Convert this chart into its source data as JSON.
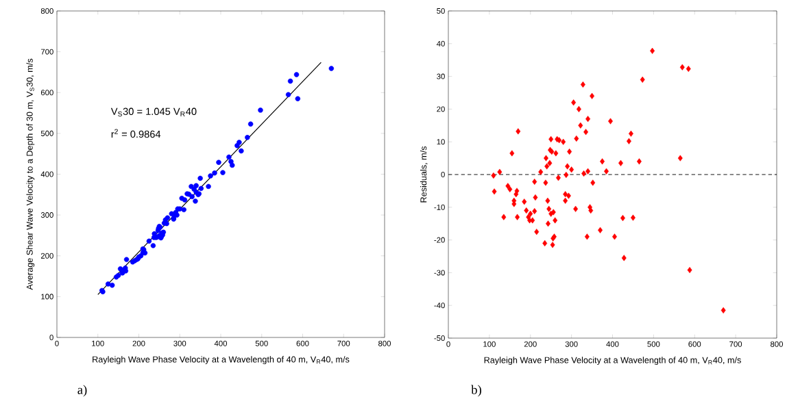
{
  "chart_data": [
    {
      "type": "scatter",
      "xlabel": "Rayleigh Wave Phase Velocity at a Wavelength of 40 m, V$_{R}$40, m/s",
      "ylabel": "Average Shear Wave Velocity to a Depth of 30 m, V$_{S}$30, m/s",
      "annotations": [
        "V$_{S}$30 = 1.045 V$_{R}$40",
        "r$^{2}$ = 0.9864",
        "a)"
      ],
      "xlim": [
        0,
        800
      ],
      "ylim": [
        0,
        800
      ],
      "xticks": [
        0,
        100,
        200,
        300,
        400,
        500,
        600,
        700,
        800
      ],
      "yticks": [
        0,
        100,
        200,
        300,
        400,
        500,
        600,
        700,
        800
      ],
      "series": [
        {
          "marker": "circle",
          "color": "#0000ff",
          "x": [
            110,
            112,
            125,
            135,
            145,
            150,
            155,
            160,
            160,
            165,
            167,
            170,
            168,
            185,
            190,
            195,
            198,
            200,
            205,
            210,
            210,
            212,
            215,
            225,
            235,
            237,
            238,
            242,
            245,
            247,
            248,
            250,
            250,
            252,
            254,
            255,
            256,
            258,
            260,
            262,
            265,
            268,
            270,
            280,
            285,
            285,
            287,
            290,
            293,
            295,
            300,
            305,
            310,
            312,
            318,
            322,
            328,
            330,
            335,
            338,
            340,
            340,
            345,
            347,
            350,
            352,
            370,
            375,
            385,
            395,
            405,
            420,
            425,
            428,
            440,
            445,
            450,
            465,
            473,
            497,
            565,
            570,
            585,
            588,
            670
          ],
          "values": [
            115,
            112,
            131,
            128,
            148,
            152,
            168,
            158,
            159,
            166,
            170,
            191,
            163,
            185,
            188,
            191,
            193,
            197,
            200,
            217,
            208,
            215,
            207,
            236,
            225,
            245,
            254,
            245,
            246,
            262,
            267,
            272,
            249,
            270,
            244,
            247,
            256,
            251,
            258,
            280,
            288,
            279,
            293,
            303,
            292,
            290,
            300,
            306,
            300,
            315,
            315,
            341,
            313,
            337,
            352,
            351,
            370,
            345,
            363,
            334,
            356,
            372,
            350,
            352,
            390,
            365,
            370,
            396,
            403,
            429,
            404,
            442,
            431,
            422,
            470,
            478,
            457,
            490,
            523,
            557,
            595,
            628,
            644,
            585,
            659
          ]
        },
        {
          "type": "line",
          "color": "#000000",
          "x": [
            100,
            645
          ],
          "values": [
            105,
            674
          ]
        }
      ]
    },
    {
      "type": "scatter",
      "xlabel": "Rayleigh Wave Phase Velocity at a Wavelength of 40 m, V$_{R}$40, m/s",
      "ylabel": "Residuals, m/s",
      "annotations": [
        "b)"
      ],
      "xlim": [
        0,
        800
      ],
      "ylim": [
        -50,
        50
      ],
      "xticks": [
        0,
        100,
        200,
        300,
        400,
        500,
        600,
        700,
        800
      ],
      "yticks": [
        -50,
        -40,
        -30,
        -20,
        -10,
        0,
        10,
        20,
        30,
        40,
        50
      ],
      "ref_lines": [
        {
          "axis": "y",
          "value": 0,
          "color": "#000000",
          "line_style": "dashed"
        }
      ],
      "series": [
        {
          "marker": "diamond",
          "color": "#ff0000",
          "x": [
            110,
            112,
            125,
            135,
            145,
            150,
            155,
            160,
            160,
            165,
            167,
            170,
            168,
            185,
            190,
            195,
            198,
            200,
            205,
            210,
            210,
            212,
            215,
            225,
            235,
            237,
            238,
            240,
            242,
            243,
            245,
            247,
            248,
            250,
            250,
            252,
            254,
            255,
            256,
            258,
            260,
            262,
            265,
            268,
            270,
            280,
            285,
            285,
            287,
            290,
            293,
            295,
            300,
            305,
            310,
            312,
            318,
            322,
            328,
            330,
            335,
            338,
            340,
            340,
            345,
            347,
            350,
            352,
            370,
            375,
            385,
            395,
            405,
            420,
            425,
            428,
            440,
            445,
            450,
            465,
            473,
            497,
            565,
            570,
            585,
            588,
            670
          ],
          "values": [
            -0.3,
            -5.2,
            0.8,
            -13,
            -3.5,
            -4.5,
            6.5,
            -9,
            -8,
            -6,
            -5,
            13.2,
            -13,
            -8.3,
            -11,
            -13,
            -14,
            -12,
            -14,
            -2.2,
            -11.2,
            -7,
            -17.5,
            0.8,
            -21,
            -2.5,
            5,
            2.5,
            -8,
            -15,
            -10.5,
            3.5,
            7.5,
            10.8,
            -12,
            7,
            -21.5,
            -19.5,
            -11.5,
            -19,
            -14,
            6.5,
            10.8,
            -1,
            10.5,
            10,
            -6,
            -8,
            -0.1,
            2.5,
            -6.5,
            7,
            1.5,
            22,
            -10.5,
            11,
            20,
            15,
            27.5,
            0.3,
            13,
            -19,
            1,
            17,
            -10,
            -11,
            24,
            -2.5,
            -17,
            4,
            1,
            16.3,
            -19,
            3.5,
            -13.3,
            -25.5,
            10.2,
            12.5,
            -13.2,
            4,
            29,
            37.8,
            5,
            32.8,
            32.3,
            -29.2,
            -41.5
          ]
        }
      ]
    }
  ]
}
